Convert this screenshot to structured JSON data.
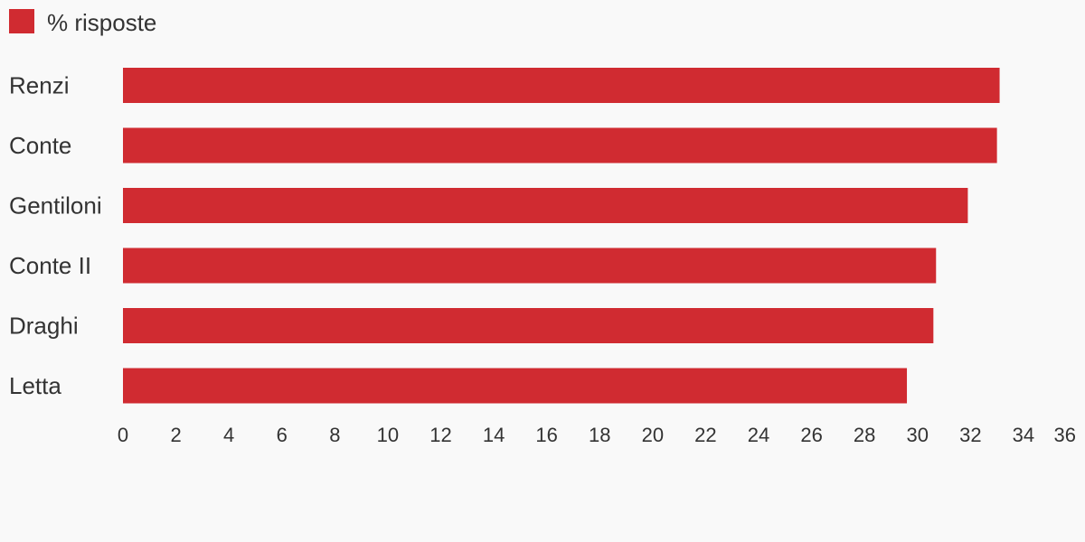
{
  "chart_data": {
    "type": "hbar",
    "categories": [
      "Renzi",
      "Conte",
      "Gentiloni",
      "Conte II",
      "Draghi",
      "Letta"
    ],
    "series": [
      {
        "name": "% risposte",
        "color": "#d02b31",
        "values": [
          33.1,
          33.0,
          31.9,
          30.7,
          30.6,
          29.6
        ]
      }
    ],
    "xlim": [
      0,
      36
    ],
    "xticks": [
      0,
      2,
      4,
      6,
      8,
      10,
      12,
      14,
      16,
      18,
      20,
      22,
      24,
      26,
      28,
      30,
      32,
      34,
      36
    ],
    "grid": false,
    "legend": "top-left"
  }
}
